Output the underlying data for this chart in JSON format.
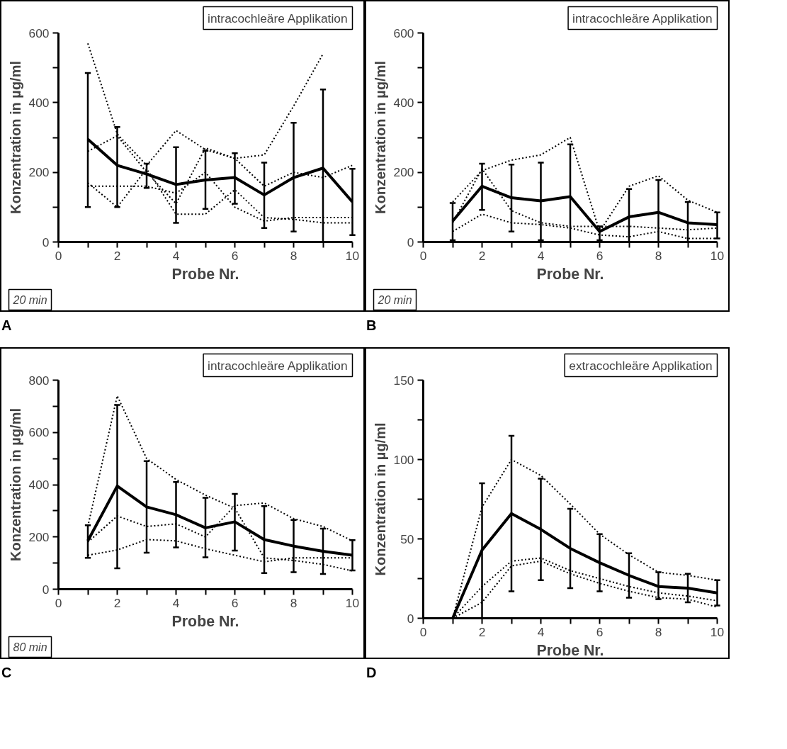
{
  "chart_data": [
    {
      "type": "line",
      "xlabel": "Probe Nr.",
      "ylabel": "Konzentration in µg/ml",
      "x": [
        1,
        2,
        3,
        4,
        5,
        6,
        7,
        8,
        9,
        10
      ],
      "xlim": [
        0,
        10
      ],
      "ylim": [
        0,
        600
      ],
      "xticks": [
        0,
        {
          "value": 1,
          "label": null
        },
        2,
        {
          "value": 3,
          "label": null
        },
        4,
        {
          "value": 5,
          "label": null
        },
        6,
        {
          "value": 7,
          "label": null
        },
        8,
        {
          "value": 9,
          "label": null
        },
        10
      ],
      "yticks": [
        0,
        {
          "value": 100,
          "label": null
        },
        200,
        {
          "value": 300,
          "label": null
        },
        400,
        {
          "value": 500,
          "label": null
        },
        600
      ],
      "grid": false,
      "annotations": [
        "intracochleäre Applikation",
        "20 min",
        "A"
      ],
      "series": [
        {
          "color": "#000000",
          "line_style": "dotted",
          "values": [
            570,
            310,
            220,
            320,
            265,
            240,
            250,
            390,
            540,
            null
          ]
        },
        {
          "color": "#000000",
          "line_style": "dotted",
          "values": [
            260,
            305,
            200,
            110,
            270,
            240,
            160,
            200,
            185,
            220
          ]
        },
        {
          "color": "#000000",
          "line_style": "dotted",
          "values": [
            170,
            100,
            210,
            80,
            80,
            150,
            70,
            65,
            55,
            55
          ]
        },
        {
          "color": "#000000",
          "line_style": "dotted",
          "values": [
            160,
            160,
            160,
            140,
            200,
            100,
            60,
            70,
            70,
            70
          ]
        },
        {
          "color": "#000000",
          "line_style": "solid",
          "values": [
            295,
            220,
            195,
            165,
            178,
            185,
            135,
            185,
            212,
            115
          ],
          "errors": [
            [
              100,
              485
            ],
            [
              100,
              330
            ],
            [
              155,
              225
            ],
            [
              55,
              272
            ],
            [
              95,
              262
            ],
            [
              110,
              255
            ],
            [
              40,
              228
            ],
            [
              30,
              342
            ],
            [
              0,
              438
            ],
            [
              20,
              210
            ]
          ]
        }
      ]
    },
    {
      "type": "line",
      "xlabel": "Probe Nr.",
      "ylabel": "Konzentration in µg/ml",
      "x": [
        1,
        2,
        3,
        4,
        5,
        6,
        7,
        8,
        9,
        10
      ],
      "xlim": [
        0,
        10
      ],
      "ylim": [
        0,
        600
      ],
      "xticks": [
        0,
        {
          "value": 1,
          "label": null
        },
        2,
        {
          "value": 3,
          "label": null
        },
        4,
        {
          "value": 5,
          "label": null
        },
        6,
        {
          "value": 7,
          "label": null
        },
        8,
        {
          "value": 9,
          "label": null
        },
        10
      ],
      "yticks": [
        0,
        {
          "value": 100,
          "label": null
        },
        200,
        {
          "value": 300,
          "label": null
        },
        400,
        {
          "value": 500,
          "label": null
        },
        600
      ],
      "grid": false,
      "annotations": [
        "intracochleäre Applikation",
        "20 min",
        "B"
      ],
      "series": [
        {
          "color": "#000000",
          "line_style": "dotted",
          "values": [
            115,
            205,
            235,
            250,
            300,
            30,
            160,
            190,
            120,
            85
          ]
        },
        {
          "color": "#000000",
          "line_style": "dotted",
          "values": [
            55,
            210,
            90,
            55,
            45,
            45,
            45,
            40,
            35,
            40
          ]
        },
        {
          "color": "#000000",
          "line_style": "dotted",
          "values": [
            30,
            80,
            55,
            50,
            40,
            20,
            15,
            30,
            10,
            10
          ]
        },
        {
          "color": "#000000",
          "line_style": "solid",
          "values": [
            60,
            160,
            127,
            118,
            130,
            30,
            72,
            85,
            55,
            50
          ],
          "errors": [
            [
              5,
              112
            ],
            [
              92,
              225
            ],
            [
              30,
              222
            ],
            [
              5,
              228
            ],
            [
              0,
              280
            ],
            [
              5,
              45
            ],
            [
              0,
              152
            ],
            [
              0,
              178
            ],
            [
              0,
              115
            ],
            [
              10,
              85
            ]
          ]
        }
      ]
    },
    {
      "type": "line",
      "xlabel": "Probe Nr.",
      "ylabel": "Konzentration in µg/ml",
      "x": [
        1,
        2,
        3,
        4,
        5,
        6,
        7,
        8,
        9,
        10
      ],
      "xlim": [
        0,
        10
      ],
      "ylim": [
        0,
        800
      ],
      "xticks": [
        0,
        {
          "value": 1,
          "label": null
        },
        2,
        {
          "value": 3,
          "label": null
        },
        4,
        {
          "value": 5,
          "label": null
        },
        6,
        {
          "value": 7,
          "label": null
        },
        8,
        {
          "value": 9,
          "label": null
        },
        10
      ],
      "yticks": [
        0,
        {
          "value": 100,
          "label": null
        },
        200,
        {
          "value": 300,
          "label": null
        },
        400,
        {
          "value": 500,
          "label": null
        },
        600,
        {
          "value": 700,
          "label": null
        },
        800
      ],
      "grid": false,
      "annotations": [
        "intracochleäre Applikation",
        "80 min",
        "C"
      ],
      "series": [
        {
          "color": "#000000",
          "line_style": "dotted",
          "values": [
            240,
            740,
            500,
            420,
            360,
            310,
            120,
            110,
            95,
            70
          ]
        },
        {
          "color": "#000000",
          "line_style": "dotted",
          "values": [
            180,
            280,
            240,
            250,
            200,
            320,
            330,
            270,
            240,
            185
          ]
        },
        {
          "color": "#000000",
          "line_style": "dotted",
          "values": [
            130,
            150,
            190,
            185,
            155,
            130,
            105,
            120,
            120,
            120
          ]
        },
        {
          "color": "#000000",
          "line_style": "solid",
          "values": [
            185,
            395,
            315,
            285,
            235,
            258,
            190,
            165,
            145,
            130
          ],
          "errors": [
            [
              120,
              245
            ],
            [
              80,
              705
            ],
            [
              140,
              490
            ],
            [
              160,
              410
            ],
            [
              122,
              350
            ],
            [
              148,
              365
            ],
            [
              62,
              318
            ],
            [
              65,
              265
            ],
            [
              58,
              232
            ],
            [
              72,
              188
            ]
          ]
        }
      ]
    },
    {
      "type": "line",
      "xlabel": "Probe Nr.",
      "ylabel": "Konzentration in µg/ml",
      "x": [
        1,
        2,
        3,
        4,
        5,
        6,
        7,
        8,
        9,
        10
      ],
      "xlim": [
        0,
        10
      ],
      "ylim": [
        0,
        150
      ],
      "xticks": [
        0,
        {
          "value": 1,
          "label": null
        },
        2,
        {
          "value": 3,
          "label": null
        },
        4,
        {
          "value": 5,
          "label": null
        },
        6,
        {
          "value": 7,
          "label": null
        },
        8,
        {
          "value": 9,
          "label": null
        },
        10
      ],
      "yticks": [
        0,
        {
          "value": 25,
          "label": null
        },
        50,
        {
          "value": 75,
          "label": null
        },
        100,
        {
          "value": 125,
          "label": null
        },
        150
      ],
      "grid": false,
      "annotations": [
        "extracochleäre Applikation",
        "D"
      ],
      "series": [
        {
          "color": "#000000",
          "line_style": "dotted",
          "values": [
            0,
            70,
            100,
            90,
            72,
            53,
            40,
            29,
            27,
            24
          ]
        },
        {
          "color": "#000000",
          "line_style": "dotted",
          "values": [
            0,
            20,
            36,
            38,
            30,
            25,
            20,
            16,
            14,
            11
          ]
        },
        {
          "color": "#000000",
          "line_style": "dotted",
          "values": [
            0,
            10,
            33,
            36,
            28,
            22,
            17,
            13,
            12,
            7
          ]
        },
        {
          "color": "#000000",
          "line_style": "solid",
          "values": [
            0,
            43,
            66,
            56,
            44,
            35,
            27,
            20,
            19,
            16
          ],
          "errors": [
            null,
            [
              0,
              85
            ],
            [
              17,
              115
            ],
            [
              24,
              88
            ],
            [
              19,
              69
            ],
            [
              17,
              53
            ],
            [
              13,
              41
            ],
            [
              12,
              29
            ],
            [
              10,
              28
            ],
            [
              8,
              24
            ]
          ]
        }
      ]
    }
  ]
}
